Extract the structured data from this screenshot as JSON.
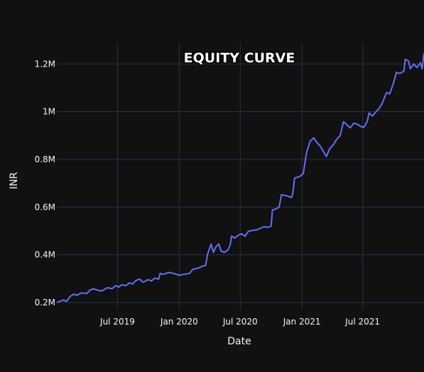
{
  "chart_data": {
    "type": "line",
    "title": "EQUITY CURVE",
    "xlabel": "Date",
    "ylabel": "INR",
    "grid": true,
    "legend": "none",
    "xlim": [
      "2019-01-01",
      "2021-12-31"
    ],
    "ylim": [
      170000,
      1290000
    ],
    "x_ticks": [
      {
        "date": "2019-07-01",
        "label": "Jul 2019"
      },
      {
        "date": "2020-01-01",
        "label": "Jan 2020"
      },
      {
        "date": "2020-07-01",
        "label": "Jul 2020"
      },
      {
        "date": "2021-01-01",
        "label": "Jan 2021"
      },
      {
        "date": "2021-07-01",
        "label": "Jul 2021"
      }
    ],
    "y_ticks": [
      {
        "value": 200000,
        "label": "0.2M"
      },
      {
        "value": 400000,
        "label": "0.4M"
      },
      {
        "value": 600000,
        "label": "0.6M"
      },
      {
        "value": 800000,
        "label": "0.8M"
      },
      {
        "value": 1000000,
        "label": "1M"
      },
      {
        "value": 1200000,
        "label": "1.2M"
      }
    ],
    "series": [
      {
        "color": "#636efa",
        "points": [
          [
            "2019-01-01",
            200000
          ],
          [
            "2019-01-20",
            210000
          ],
          [
            "2019-01-30",
            205000
          ],
          [
            "2019-02-10",
            225000
          ],
          [
            "2019-02-20",
            235000
          ],
          [
            "2019-03-01",
            230000
          ],
          [
            "2019-03-15",
            240000
          ],
          [
            "2019-04-01",
            238000
          ],
          [
            "2019-04-10",
            252000
          ],
          [
            "2019-04-20",
            258000
          ],
          [
            "2019-05-01",
            252000
          ],
          [
            "2019-05-15",
            248000
          ],
          [
            "2019-06-01",
            262000
          ],
          [
            "2019-06-15",
            258000
          ],
          [
            "2019-06-25",
            270000
          ],
          [
            "2019-07-05",
            265000
          ],
          [
            "2019-07-15",
            275000
          ],
          [
            "2019-07-25",
            270000
          ],
          [
            "2019-08-05",
            282000
          ],
          [
            "2019-08-15",
            278000
          ],
          [
            "2019-08-25",
            292000
          ],
          [
            "2019-09-05",
            298000
          ],
          [
            "2019-09-15",
            285000
          ],
          [
            "2019-10-01",
            296000
          ],
          [
            "2019-10-10",
            290000
          ],
          [
            "2019-10-20",
            302000
          ],
          [
            "2019-11-01",
            298000
          ],
          [
            "2019-11-05",
            322000
          ],
          [
            "2019-11-15",
            318000
          ],
          [
            "2019-12-01",
            326000
          ],
          [
            "2019-12-15",
            322000
          ],
          [
            "2020-01-01",
            314000
          ],
          [
            "2020-01-15",
            318000
          ],
          [
            "2020-02-01",
            322000
          ],
          [
            "2020-02-10",
            338000
          ],
          [
            "2020-02-20",
            342000
          ],
          [
            "2020-03-01",
            346000
          ],
          [
            "2020-03-10",
            352000
          ],
          [
            "2020-03-20",
            356000
          ],
          [
            "2020-03-25",
            400000
          ],
          [
            "2020-04-05",
            445000
          ],
          [
            "2020-04-12",
            410000
          ],
          [
            "2020-04-20",
            435000
          ],
          [
            "2020-04-28",
            445000
          ],
          [
            "2020-05-05",
            415000
          ],
          [
            "2020-05-15",
            410000
          ],
          [
            "2020-05-25",
            420000
          ],
          [
            "2020-06-01",
            440000
          ],
          [
            "2020-06-05",
            478000
          ],
          [
            "2020-06-15",
            470000
          ],
          [
            "2020-06-25",
            482000
          ],
          [
            "2020-07-05",
            488000
          ],
          [
            "2020-07-15",
            478000
          ],
          [
            "2020-07-25",
            498000
          ],
          [
            "2020-08-05",
            502000
          ],
          [
            "2020-08-20",
            505000
          ],
          [
            "2020-09-01",
            512000
          ],
          [
            "2020-09-10",
            518000
          ],
          [
            "2020-09-20",
            515000
          ],
          [
            "2020-10-01",
            520000
          ],
          [
            "2020-10-05",
            588000
          ],
          [
            "2020-10-15",
            592000
          ],
          [
            "2020-10-25",
            600000
          ],
          [
            "2020-11-01",
            652000
          ],
          [
            "2020-11-15",
            648000
          ],
          [
            "2020-12-01",
            640000
          ],
          [
            "2020-12-05",
            660000
          ],
          [
            "2020-12-10",
            722000
          ],
          [
            "2020-12-25",
            728000
          ],
          [
            "2021-01-05",
            740000
          ],
          [
            "2021-01-15",
            830000
          ],
          [
            "2021-01-25",
            875000
          ],
          [
            "2021-02-05",
            890000
          ],
          [
            "2021-02-15",
            870000
          ],
          [
            "2021-02-25",
            855000
          ],
          [
            "2021-03-05",
            835000
          ],
          [
            "2021-03-15",
            812000
          ],
          [
            "2021-03-25",
            845000
          ],
          [
            "2021-04-05",
            862000
          ],
          [
            "2021-04-15",
            885000
          ],
          [
            "2021-04-25",
            900000
          ],
          [
            "2021-05-01",
            935000
          ],
          [
            "2021-05-05",
            958000
          ],
          [
            "2021-05-15",
            945000
          ],
          [
            "2021-05-25",
            932000
          ],
          [
            "2021-06-05",
            952000
          ],
          [
            "2021-06-15",
            948000
          ],
          [
            "2021-06-25",
            938000
          ],
          [
            "2021-07-05",
            935000
          ],
          [
            "2021-07-15",
            960000
          ],
          [
            "2021-07-20",
            995000
          ],
          [
            "2021-07-30",
            982000
          ],
          [
            "2021-08-10",
            1000000
          ],
          [
            "2021-08-20",
            1015000
          ],
          [
            "2021-08-30",
            1040000
          ],
          [
            "2021-09-10",
            1080000
          ],
          [
            "2021-09-20",
            1075000
          ],
          [
            "2021-10-01",
            1120000
          ],
          [
            "2021-10-10",
            1165000
          ],
          [
            "2021-10-20",
            1160000
          ],
          [
            "2021-11-01",
            1170000
          ],
          [
            "2021-11-05",
            1220000
          ],
          [
            "2021-11-15",
            1212000
          ],
          [
            "2021-11-20",
            1180000
          ],
          [
            "2021-12-01",
            1200000
          ],
          [
            "2021-12-10",
            1185000
          ],
          [
            "2021-12-20",
            1205000
          ],
          [
            "2021-12-25",
            1180000
          ],
          [
            "2021-12-31",
            1245000
          ]
        ]
      }
    ]
  }
}
